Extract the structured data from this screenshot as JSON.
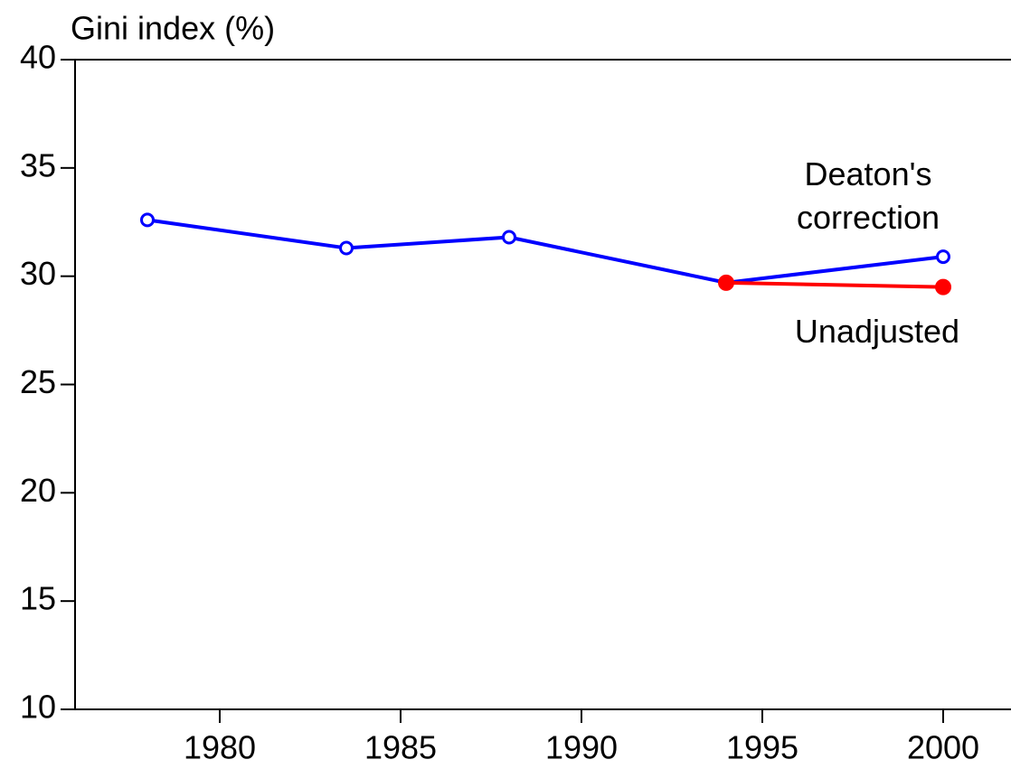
{
  "chart_data": {
    "type": "line",
    "y_label": "Gini index (%)",
    "x": [
      1978,
      1983.5,
      1988,
      1994,
      2000
    ],
    "series": [
      {
        "name": "Deaton's correction",
        "color": "#0000ff",
        "marker": "open",
        "values": [
          32.6,
          31.3,
          31.8,
          29.7,
          30.9
        ]
      },
      {
        "name": "Unadjusted",
        "color": "#ff0000",
        "marker": "filled",
        "values": [
          null,
          null,
          null,
          29.7,
          29.5
        ]
      }
    ],
    "xlim": [
      1976,
      2001.8
    ],
    "xticks": [
      1980,
      1985,
      1990,
      1995,
      2000
    ],
    "ylim": [
      10,
      40
    ],
    "yticks": [
      10,
      15,
      20,
      25,
      30,
      35,
      40
    ]
  }
}
